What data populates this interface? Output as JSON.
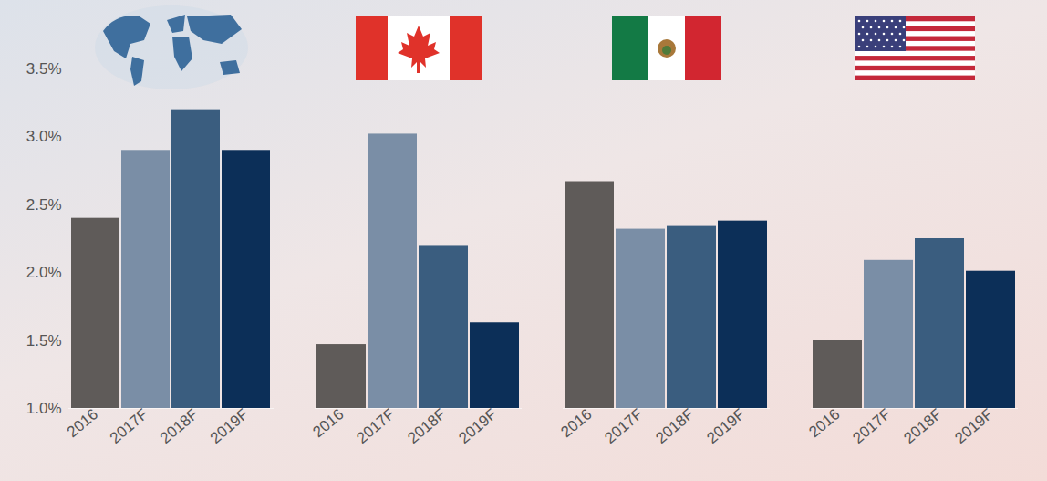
{
  "chart_data": [
    {
      "type": "bar",
      "categories": [
        "2016",
        "2017F",
        "2018F",
        "2019F"
      ],
      "values": [
        2.4,
        2.9,
        3.2,
        2.9
      ],
      "colors": [
        "#5f5b59",
        "#7a8ea6",
        "#3a5d7f",
        "#0c2f58"
      ],
      "ylim": [
        1.0,
        3.5
      ],
      "yticks": [
        {
          "value": 1.0,
          "label": "1.0%"
        },
        {
          "value": 1.5,
          "label": "1.5%"
        },
        {
          "value": 2.0,
          "label": "2.0%"
        },
        {
          "value": 2.5,
          "label": "2.5%"
        },
        {
          "value": 3.0,
          "label": "3.0%"
        },
        {
          "value": 3.5,
          "label": "3.5%"
        }
      ],
      "grid": false
    },
    {
      "type": "bar",
      "categories": [
        "2016",
        "2017F",
        "2018F",
        "2019F"
      ],
      "values": [
        1.47,
        3.02,
        2.2,
        1.63
      ],
      "colors": [
        "#5f5b59",
        "#7a8ea6",
        "#3a5d7f",
        "#0c2f58"
      ],
      "ylim": [
        1.0,
        3.5
      ],
      "tick_labels": "x",
      "grid": false
    },
    {
      "type": "bar",
      "categories": [
        "2016",
        "2017F",
        "2018F",
        "2019F"
      ],
      "values": [
        2.67,
        2.32,
        2.34,
        2.38
      ],
      "colors": [
        "#5f5b59",
        "#7a8ea6",
        "#3a5d7f",
        "#0c2f58"
      ],
      "ylim": [
        1.0,
        3.5
      ],
      "tick_labels": "x",
      "grid": false
    },
    {
      "type": "bar",
      "categories": [
        "2016",
        "2017F",
        "2018F",
        "2019F"
      ],
      "values": [
        1.5,
        2.09,
        2.25,
        2.01
      ],
      "colors": [
        "#5f5b59",
        "#7a8ea6",
        "#3a5d7f",
        "#0c2f58"
      ],
      "ylim": [
        1.0,
        3.5
      ],
      "tick_labels": "x",
      "grid": false
    }
  ]
}
